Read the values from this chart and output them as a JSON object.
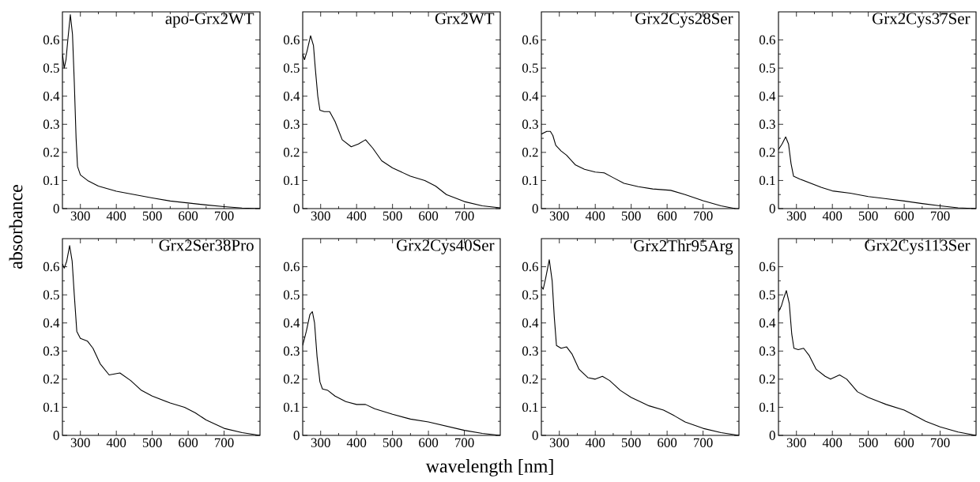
{
  "chart_data": [
    {
      "type": "line",
      "title": "apo-Grx2WT",
      "ylabel": "absorbance",
      "xlim": [
        250,
        800
      ],
      "ylim": [
        0,
        0.7
      ],
      "xticks": [
        300,
        400,
        500,
        600,
        700
      ],
      "yticks": [
        0,
        0.1,
        0.2,
        0.3,
        0.4,
        0.5,
        0.6
      ],
      "x": [
        250,
        255,
        260,
        265,
        272,
        278,
        283,
        288,
        292,
        300,
        320,
        350,
        400,
        450,
        500,
        550,
        600,
        650,
        700,
        750,
        800
      ],
      "series": [
        {
          "color": "#000000",
          "values": [
            0.55,
            0.5,
            0.53,
            0.6,
            0.69,
            0.62,
            0.45,
            0.25,
            0.15,
            0.12,
            0.1,
            0.08,
            0.062,
            0.05,
            0.038,
            0.027,
            0.02,
            0.013,
            0.007,
            0.002,
            0
          ]
        }
      ]
    },
    {
      "type": "line",
      "title": "Grx2WT",
      "xlim": [
        250,
        800
      ],
      "ylim": [
        0,
        0.7
      ],
      "xticks": [
        300,
        400,
        500,
        600,
        700
      ],
      "yticks": [
        0,
        0.1,
        0.2,
        0.3,
        0.4,
        0.5,
        0.6
      ],
      "x": [
        250,
        255,
        262,
        272,
        280,
        285,
        292,
        298,
        310,
        325,
        340,
        360,
        385,
        405,
        425,
        445,
        470,
        500,
        550,
        590,
        620,
        650,
        700,
        750,
        800
      ],
      "series": [
        {
          "color": "#000000",
          "values": [
            0.55,
            0.53,
            0.56,
            0.615,
            0.58,
            0.5,
            0.4,
            0.35,
            0.345,
            0.345,
            0.31,
            0.245,
            0.22,
            0.23,
            0.245,
            0.215,
            0.17,
            0.145,
            0.115,
            0.1,
            0.08,
            0.05,
            0.025,
            0.01,
            0.003
          ]
        }
      ]
    },
    {
      "type": "line",
      "title": "Grx2Cys28Ser",
      "xlim": [
        250,
        800
      ],
      "ylim": [
        0,
        0.7
      ],
      "xticks": [
        300,
        400,
        500,
        600,
        700
      ],
      "yticks": [
        0,
        0.1,
        0.2,
        0.3,
        0.4,
        0.5,
        0.6
      ],
      "x": [
        250,
        265,
        275,
        282,
        290,
        305,
        320,
        345,
        370,
        400,
        425,
        450,
        480,
        520,
        560,
        610,
        650,
        700,
        750,
        790
      ],
      "series": [
        {
          "color": "#000000",
          "values": [
            0.265,
            0.275,
            0.275,
            0.26,
            0.225,
            0.205,
            0.19,
            0.155,
            0.14,
            0.13,
            0.127,
            0.11,
            0.09,
            0.078,
            0.07,
            0.065,
            0.05,
            0.028,
            0.01,
            0
          ]
        }
      ]
    },
    {
      "type": "line",
      "title": "Grx2Cys37Ser",
      "xlim": [
        250,
        800
      ],
      "ylim": [
        0,
        0.7
      ],
      "xticks": [
        300,
        400,
        500,
        600,
        700
      ],
      "yticks": [
        0,
        0.1,
        0.2,
        0.3,
        0.4,
        0.5,
        0.6
      ],
      "x": [
        250,
        260,
        270,
        278,
        285,
        292,
        310,
        340,
        370,
        400,
        450,
        500,
        550,
        600,
        650,
        700,
        750,
        800
      ],
      "series": [
        {
          "color": "#000000",
          "values": [
            0.21,
            0.23,
            0.255,
            0.23,
            0.16,
            0.115,
            0.105,
            0.09,
            0.075,
            0.063,
            0.055,
            0.043,
            0.035,
            0.027,
            0.018,
            0.01,
            0.003,
            0
          ]
        }
      ]
    },
    {
      "type": "line",
      "title": "Grx2Ser38Pro",
      "xlim": [
        250,
        800
      ],
      "ylim": [
        0,
        0.7
      ],
      "xticks": [
        300,
        400,
        500,
        600,
        700
      ],
      "yticks": [
        0,
        0.1,
        0.2,
        0.3,
        0.4,
        0.5,
        0.6
      ],
      "x": [
        250,
        255,
        262,
        270,
        277,
        283,
        290,
        300,
        320,
        335,
        355,
        380,
        410,
        440,
        470,
        500,
        550,
        590,
        620,
        650,
        700,
        750,
        800
      ],
      "series": [
        {
          "color": "#000000",
          "values": [
            0.61,
            0.595,
            0.62,
            0.675,
            0.62,
            0.5,
            0.37,
            0.345,
            0.335,
            0.31,
            0.255,
            0.215,
            0.222,
            0.195,
            0.16,
            0.14,
            0.115,
            0.1,
            0.08,
            0.055,
            0.025,
            0.01,
            0
          ]
        }
      ]
    },
    {
      "type": "line",
      "title": "Grx2Cys40Ser",
      "xlabel": "wavelength [nm]",
      "xlim": [
        250,
        800
      ],
      "ylim": [
        0,
        0.7
      ],
      "xticks": [
        300,
        400,
        500,
        600,
        700
      ],
      "yticks": [
        0,
        0.1,
        0.2,
        0.3,
        0.4,
        0.5,
        0.6
      ],
      "x": [
        250,
        260,
        270,
        277,
        283,
        290,
        298,
        305,
        320,
        340,
        370,
        400,
        425,
        450,
        500,
        550,
        600,
        650,
        700,
        750,
        800
      ],
      "series": [
        {
          "color": "#000000",
          "values": [
            0.32,
            0.37,
            0.43,
            0.44,
            0.4,
            0.28,
            0.19,
            0.165,
            0.16,
            0.14,
            0.12,
            0.11,
            0.11,
            0.095,
            0.075,
            0.058,
            0.048,
            0.033,
            0.018,
            0.007,
            0
          ]
        }
      ]
    },
    {
      "type": "line",
      "title": "Grx2Thr95Arg",
      "xlim": [
        250,
        800
      ],
      "ylim": [
        0,
        0.7
      ],
      "xticks": [
        300,
        400,
        500,
        600,
        700
      ],
      "yticks": [
        0,
        0.1,
        0.2,
        0.3,
        0.4,
        0.5,
        0.6
      ],
      "x": [
        250,
        255,
        262,
        272,
        280,
        286,
        292,
        305,
        320,
        335,
        355,
        380,
        400,
        420,
        440,
        470,
        500,
        550,
        590,
        620,
        650,
        700,
        750,
        800
      ],
      "series": [
        {
          "color": "#000000",
          "values": [
            0.53,
            0.52,
            0.56,
            0.625,
            0.55,
            0.42,
            0.32,
            0.31,
            0.315,
            0.29,
            0.235,
            0.205,
            0.2,
            0.21,
            0.195,
            0.16,
            0.135,
            0.105,
            0.09,
            0.07,
            0.048,
            0.025,
            0.01,
            0
          ]
        }
      ]
    },
    {
      "type": "line",
      "title": "Grx2Cys113Ser",
      "xlim": [
        250,
        800
      ],
      "ylim": [
        0,
        0.7
      ],
      "xticks": [
        300,
        400,
        500,
        600,
        700
      ],
      "yticks": [
        0,
        0.1,
        0.2,
        0.3,
        0.4,
        0.5,
        0.6
      ],
      "x": [
        250,
        258,
        265,
        272,
        280,
        287,
        293,
        305,
        320,
        335,
        355,
        380,
        395,
        420,
        440,
        470,
        500,
        550,
        600,
        630,
        660,
        700,
        750,
        800
      ],
      "series": [
        {
          "color": "#000000",
          "values": [
            0.44,
            0.46,
            0.49,
            0.515,
            0.47,
            0.36,
            0.31,
            0.305,
            0.31,
            0.285,
            0.235,
            0.21,
            0.2,
            0.215,
            0.2,
            0.155,
            0.135,
            0.11,
            0.09,
            0.07,
            0.05,
            0.03,
            0.012,
            0
          ]
        }
      ]
    }
  ]
}
